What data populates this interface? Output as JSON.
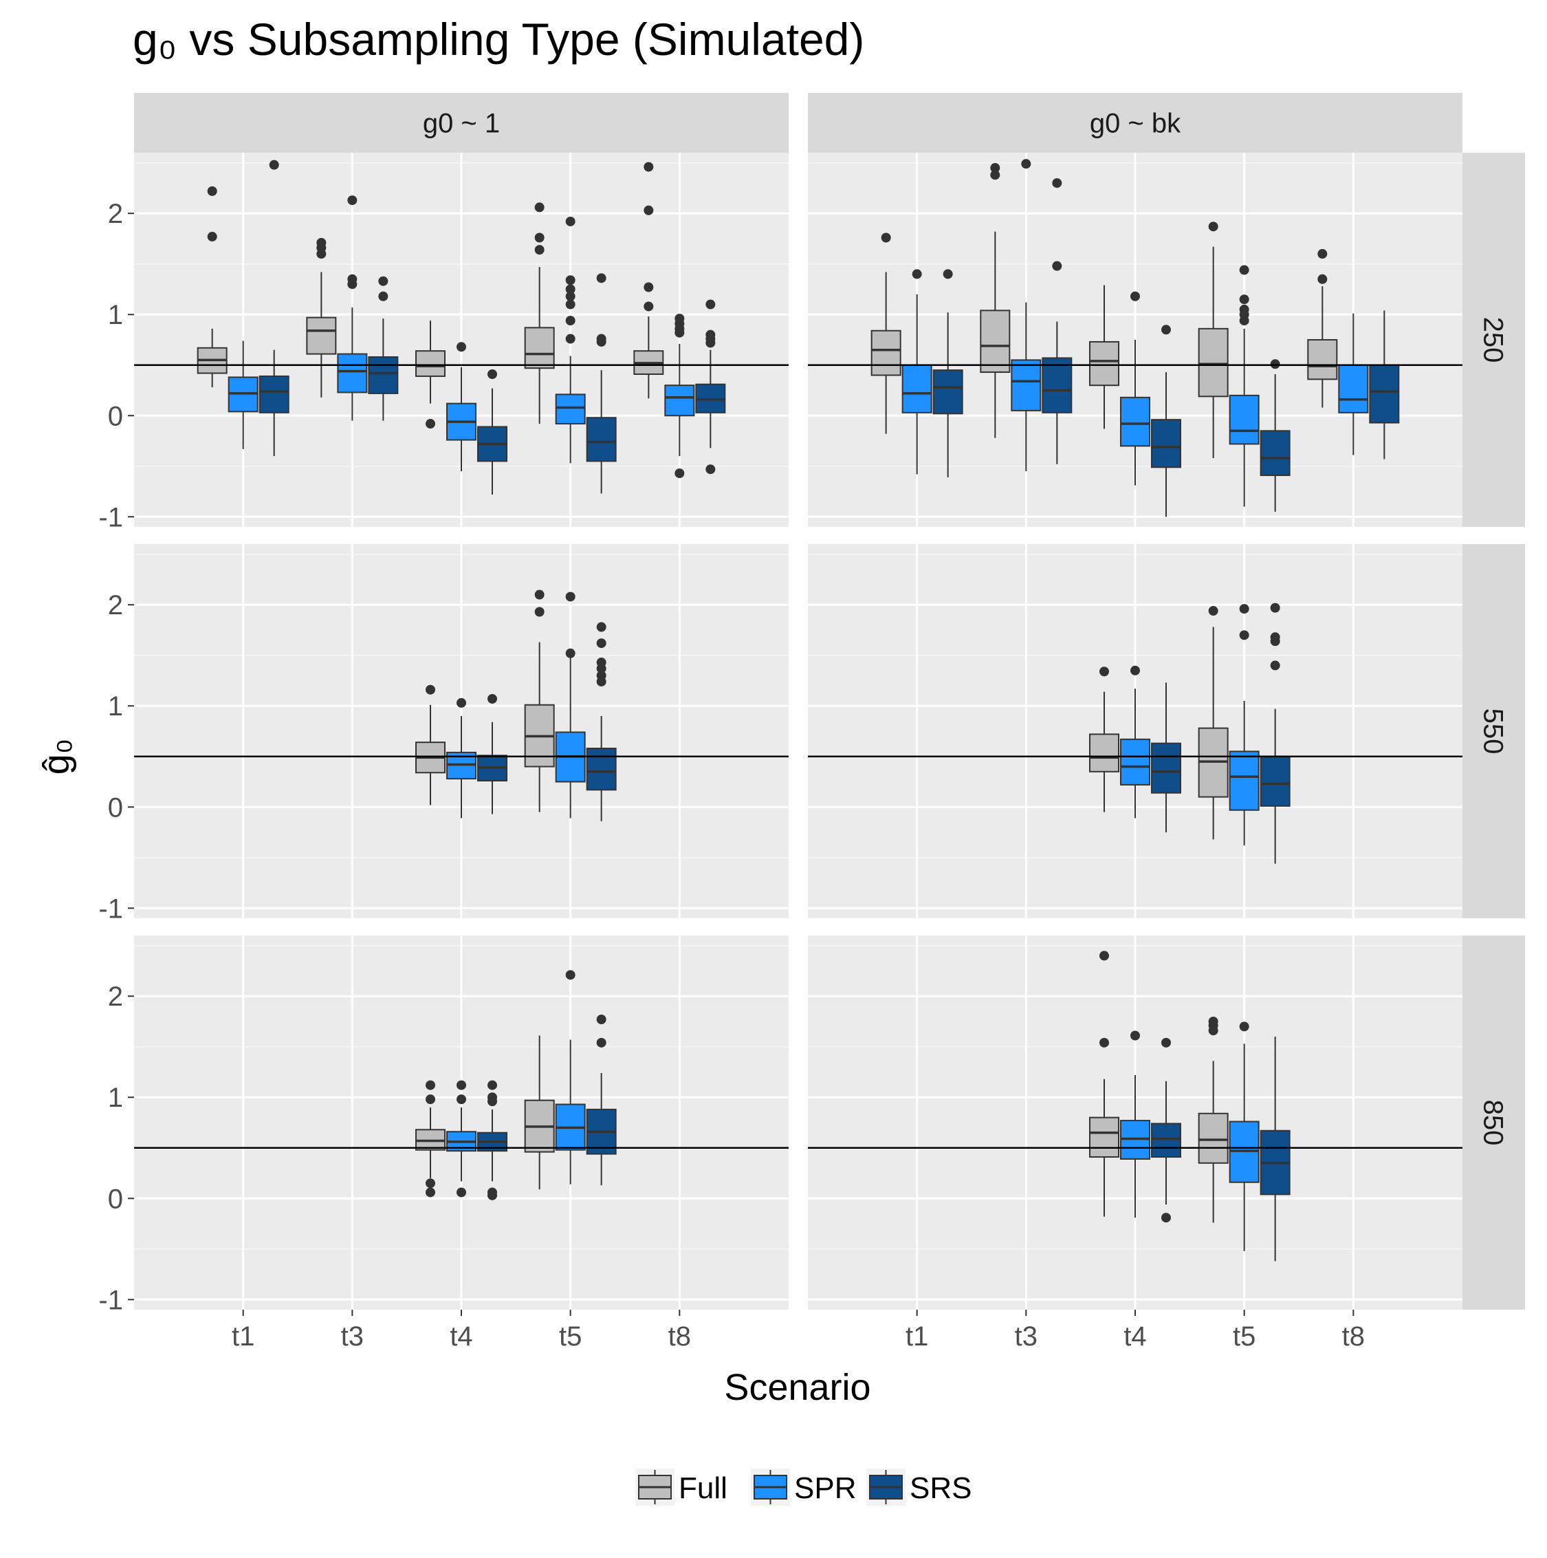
{
  "title": "g₀ vs Subsampling Type (Simulated)",
  "chart_data": {
    "type": "box",
    "title": "g₀ vs Subsampling Type (Simulated)",
    "xlabel": "Scenario",
    "ylabel": "ĝ₀",
    "categories": [
      "t1",
      "t3",
      "t4",
      "t5",
      "t8"
    ],
    "ylim": [
      -1.1,
      2.6
    ],
    "yticks": [
      -1,
      0,
      1,
      2
    ],
    "reference_line": 0.5,
    "grid": true,
    "legend": {
      "position": "bottom",
      "entries": [
        "Full",
        "SPR",
        "SRS"
      ]
    },
    "colors": {
      "Full": "#bebebe",
      "SPR": "#1e90ff",
      "SRS": "#104e8b"
    },
    "facet_cols": [
      "g0 ~ 1",
      "g0 ~ bk"
    ],
    "facet_rows": [
      "250",
      "550",
      "850"
    ],
    "panels": [
      {
        "row": "250",
        "col": "g0 ~ 1",
        "boxes": [
          {
            "x": "t1",
            "series": "Full",
            "lower_whisker": 0.28,
            "q1": 0.42,
            "median": 0.55,
            "q3": 0.67,
            "upper_whisker": 0.86,
            "outliers": [
              2.22,
              1.77
            ]
          },
          {
            "x": "t1",
            "series": "SPR",
            "lower_whisker": -0.33,
            "q1": 0.04,
            "median": 0.22,
            "q3": 0.38,
            "upper_whisker": 0.74,
            "outliers": []
          },
          {
            "x": "t1",
            "series": "SRS",
            "lower_whisker": -0.4,
            "q1": 0.03,
            "median": 0.24,
            "q3": 0.39,
            "upper_whisker": 0.65,
            "outliers": [
              2.48
            ]
          },
          {
            "x": "t3",
            "series": "Full",
            "lower_whisker": 0.18,
            "q1": 0.61,
            "median": 0.84,
            "q3": 0.97,
            "upper_whisker": 1.42,
            "outliers": [
              1.71,
              1.66,
              1.6
            ]
          },
          {
            "x": "t3",
            "series": "SPR",
            "lower_whisker": -0.05,
            "q1": 0.23,
            "median": 0.44,
            "q3": 0.61,
            "upper_whisker": 1.07,
            "outliers": [
              2.13,
              1.35,
              1.3
            ]
          },
          {
            "x": "t3",
            "series": "SRS",
            "lower_whisker": -0.05,
            "q1": 0.22,
            "median": 0.42,
            "q3": 0.58,
            "upper_whisker": 0.96,
            "outliers": [
              1.33,
              1.18
            ]
          },
          {
            "x": "t4",
            "series": "Full",
            "lower_whisker": 0.12,
            "q1": 0.39,
            "median": 0.49,
            "q3": 0.64,
            "upper_whisker": 0.94,
            "outliers": [
              -0.08
            ]
          },
          {
            "x": "t4",
            "series": "SPR",
            "lower_whisker": -0.55,
            "q1": -0.24,
            "median": -0.06,
            "q3": 0.12,
            "upper_whisker": 0.48,
            "outliers": [
              0.68
            ]
          },
          {
            "x": "t4",
            "series": "SRS",
            "lower_whisker": -0.78,
            "q1": -0.45,
            "median": -0.28,
            "q3": -0.11,
            "upper_whisker": 0.27,
            "outliers": [
              0.41
            ]
          },
          {
            "x": "t5",
            "series": "Full",
            "lower_whisker": -0.08,
            "q1": 0.47,
            "median": 0.61,
            "q3": 0.87,
            "upper_whisker": 1.47,
            "outliers": [
              2.06,
              1.76,
              1.64
            ]
          },
          {
            "x": "t5",
            "series": "SPR",
            "lower_whisker": -0.47,
            "q1": -0.08,
            "median": 0.08,
            "q3": 0.21,
            "upper_whisker": 0.59,
            "outliers": [
              1.92,
              1.34,
              1.25,
              1.18,
              1.1,
              0.94,
              0.76
            ]
          },
          {
            "x": "t5",
            "series": "SRS",
            "lower_whisker": -0.77,
            "q1": -0.45,
            "median": -0.26,
            "q3": -0.02,
            "upper_whisker": 0.45,
            "outliers": [
              1.36,
              0.76,
              0.73
            ]
          },
          {
            "x": "t8",
            "series": "Full",
            "lower_whisker": 0.17,
            "q1": 0.41,
            "median": 0.52,
            "q3": 0.64,
            "upper_whisker": 0.98,
            "outliers": [
              2.46,
              2.03,
              1.27,
              1.08
            ]
          },
          {
            "x": "t8",
            "series": "SPR",
            "lower_whisker": -0.4,
            "q1": 0.0,
            "median": 0.18,
            "q3": 0.3,
            "upper_whisker": 0.71,
            "outliers": [
              0.96,
              0.91,
              0.86,
              0.82,
              -0.57
            ]
          },
          {
            "x": "t8",
            "series": "SRS",
            "lower_whisker": -0.32,
            "q1": 0.03,
            "median": 0.16,
            "q3": 0.31,
            "upper_whisker": 0.65,
            "outliers": [
              1.1,
              0.8,
              0.76,
              0.72,
              -0.53
            ]
          }
        ]
      },
      {
        "row": "250",
        "col": "g0 ~ bk",
        "boxes": [
          {
            "x": "t1",
            "series": "Full",
            "lower_whisker": -0.18,
            "q1": 0.4,
            "median": 0.65,
            "q3": 0.84,
            "upper_whisker": 1.42,
            "outliers": [
              1.76
            ]
          },
          {
            "x": "t1",
            "series": "SPR",
            "lower_whisker": -0.58,
            "q1": 0.03,
            "median": 0.22,
            "q3": 0.5,
            "upper_whisker": 1.2,
            "outliers": [
              1.4
            ]
          },
          {
            "x": "t1",
            "series": "SRS",
            "lower_whisker": -0.61,
            "q1": 0.02,
            "median": 0.28,
            "q3": 0.45,
            "upper_whisker": 1.02,
            "outliers": [
              1.4
            ]
          },
          {
            "x": "t3",
            "series": "Full",
            "lower_whisker": -0.22,
            "q1": 0.43,
            "median": 0.69,
            "q3": 1.04,
            "upper_whisker": 1.82,
            "outliers": [
              2.45,
              2.38
            ]
          },
          {
            "x": "t3",
            "series": "SPR",
            "lower_whisker": -0.55,
            "q1": 0.05,
            "median": 0.34,
            "q3": 0.55,
            "upper_whisker": 1.12,
            "outliers": [
              2.49
            ]
          },
          {
            "x": "t3",
            "series": "SRS",
            "lower_whisker": -0.48,
            "q1": 0.03,
            "median": 0.25,
            "q3": 0.57,
            "upper_whisker": 0.93,
            "outliers": [
              2.3,
              1.48
            ]
          },
          {
            "x": "t4",
            "series": "Full",
            "lower_whisker": -0.13,
            "q1": 0.3,
            "median": 0.54,
            "q3": 0.73,
            "upper_whisker": 1.29,
            "outliers": []
          },
          {
            "x": "t4",
            "series": "SPR",
            "lower_whisker": -0.69,
            "q1": -0.3,
            "median": -0.08,
            "q3": 0.18,
            "upper_whisker": 0.75,
            "outliers": [
              1.18
            ]
          },
          {
            "x": "t4",
            "series": "SRS",
            "lower_whisker": -1.0,
            "q1": -0.51,
            "median": -0.31,
            "q3": -0.04,
            "upper_whisker": 0.43,
            "outliers": [
              0.85
            ]
          },
          {
            "x": "t5",
            "series": "Full",
            "lower_whisker": -0.42,
            "q1": 0.19,
            "median": 0.51,
            "q3": 0.86,
            "upper_whisker": 1.67,
            "outliers": [
              1.87
            ]
          },
          {
            "x": "t5",
            "series": "SPR",
            "lower_whisker": -0.9,
            "q1": -0.28,
            "median": -0.15,
            "q3": 0.2,
            "upper_whisker": 0.86,
            "outliers": [
              1.44,
              1.15,
              1.05,
              1.0,
              0.94
            ]
          },
          {
            "x": "t5",
            "series": "SRS",
            "lower_whisker": -0.95,
            "q1": -0.59,
            "median": -0.42,
            "q3": -0.15,
            "upper_whisker": 0.41,
            "outliers": [
              0.51
            ]
          },
          {
            "x": "t8",
            "series": "Full",
            "lower_whisker": 0.08,
            "q1": 0.36,
            "median": 0.49,
            "q3": 0.75,
            "upper_whisker": 1.28,
            "outliers": [
              1.6,
              1.35
            ]
          },
          {
            "x": "t8",
            "series": "SPR",
            "lower_whisker": -0.39,
            "q1": 0.03,
            "median": 0.16,
            "q3": 0.5,
            "upper_whisker": 1.01,
            "outliers": []
          },
          {
            "x": "t8",
            "series": "SRS",
            "lower_whisker": -0.43,
            "q1": -0.07,
            "median": 0.24,
            "q3": 0.5,
            "upper_whisker": 1.04,
            "outliers": []
          }
        ]
      },
      {
        "row": "550",
        "col": "g0 ~ 1",
        "boxes": [
          {
            "x": "t4",
            "series": "Full",
            "lower_whisker": 0.02,
            "q1": 0.34,
            "median": 0.49,
            "q3": 0.64,
            "upper_whisker": 1.01,
            "outliers": [
              1.16
            ]
          },
          {
            "x": "t4",
            "series": "SPR",
            "lower_whisker": -0.11,
            "q1": 0.28,
            "median": 0.42,
            "q3": 0.54,
            "upper_whisker": 0.9,
            "outliers": [
              1.03
            ]
          },
          {
            "x": "t4",
            "series": "SRS",
            "lower_whisker": -0.07,
            "q1": 0.26,
            "median": 0.39,
            "q3": 0.51,
            "upper_whisker": 0.84,
            "outliers": [
              1.07
            ]
          },
          {
            "x": "t5",
            "series": "Full",
            "lower_whisker": -0.05,
            "q1": 0.4,
            "median": 0.7,
            "q3": 1.01,
            "upper_whisker": 1.63,
            "outliers": [
              2.1,
              1.93
            ]
          },
          {
            "x": "t5",
            "series": "SPR",
            "lower_whisker": -0.11,
            "q1": 0.25,
            "median": 0.5,
            "q3": 0.74,
            "upper_whisker": 1.49,
            "outliers": [
              2.08,
              1.52
            ]
          },
          {
            "x": "t5",
            "series": "SRS",
            "lower_whisker": -0.14,
            "q1": 0.17,
            "median": 0.35,
            "q3": 0.58,
            "upper_whisker": 0.9,
            "outliers": [
              1.78,
              1.62,
              1.43,
              1.37,
              1.3,
              1.24
            ]
          }
        ]
      },
      {
        "row": "550",
        "col": "g0 ~ bk",
        "boxes": [
          {
            "x": "t4",
            "series": "Full",
            "lower_whisker": -0.05,
            "q1": 0.35,
            "median": 0.49,
            "q3": 0.72,
            "upper_whisker": 1.14,
            "outliers": [
              1.34
            ]
          },
          {
            "x": "t4",
            "series": "SPR",
            "lower_whisker": -0.11,
            "q1": 0.22,
            "median": 0.4,
            "q3": 0.67,
            "upper_whisker": 1.17,
            "outliers": [
              1.35
            ]
          },
          {
            "x": "t4",
            "series": "SRS",
            "lower_whisker": -0.25,
            "q1": 0.14,
            "median": 0.35,
            "q3": 0.63,
            "upper_whisker": 1.23,
            "outliers": []
          },
          {
            "x": "t5",
            "series": "Full",
            "lower_whisker": -0.32,
            "q1": 0.1,
            "median": 0.45,
            "q3": 0.78,
            "upper_whisker": 1.78,
            "outliers": [
              1.94
            ]
          },
          {
            "x": "t5",
            "series": "SPR",
            "lower_whisker": -0.38,
            "q1": -0.03,
            "median": 0.3,
            "q3": 0.55,
            "upper_whisker": 1.05,
            "outliers": [
              1.96,
              1.7
            ]
          },
          {
            "x": "t5",
            "series": "SRS",
            "lower_whisker": -0.56,
            "q1": 0.01,
            "median": 0.23,
            "q3": 0.5,
            "upper_whisker": 0.97,
            "outliers": [
              1.97,
              1.68,
              1.64,
              1.4
            ]
          }
        ]
      },
      {
        "row": "850",
        "col": "g0 ~ 1",
        "boxes": [
          {
            "x": "t4",
            "series": "Full",
            "lower_whisker": 0.2,
            "q1": 0.48,
            "median": 0.57,
            "q3": 0.68,
            "upper_whisker": 0.9,
            "outliers": [
              1.12,
              0.98,
              0.15,
              0.06
            ]
          },
          {
            "x": "t4",
            "series": "SPR",
            "lower_whisker": 0.17,
            "q1": 0.47,
            "median": 0.56,
            "q3": 0.66,
            "upper_whisker": 0.9,
            "outliers": [
              1.12,
              0.98,
              0.06
            ]
          },
          {
            "x": "t4",
            "series": "SRS",
            "lower_whisker": 0.17,
            "q1": 0.47,
            "median": 0.56,
            "q3": 0.65,
            "upper_whisker": 0.88,
            "outliers": [
              1.12,
              1.0,
              0.96,
              0.06,
              0.03
            ]
          },
          {
            "x": "t5",
            "series": "Full",
            "lower_whisker": 0.09,
            "q1": 0.46,
            "median": 0.71,
            "q3": 0.97,
            "upper_whisker": 1.61,
            "outliers": []
          },
          {
            "x": "t5",
            "series": "SPR",
            "lower_whisker": 0.14,
            "q1": 0.48,
            "median": 0.7,
            "q3": 0.93,
            "upper_whisker": 1.57,
            "outliers": [
              2.21
            ]
          },
          {
            "x": "t5",
            "series": "SRS",
            "lower_whisker": 0.13,
            "q1": 0.44,
            "median": 0.66,
            "q3": 0.88,
            "upper_whisker": 1.24,
            "outliers": [
              1.77,
              1.54
            ]
          }
        ]
      },
      {
        "row": "850",
        "col": "g0 ~ bk",
        "boxes": [
          {
            "x": "t4",
            "series": "Full",
            "lower_whisker": -0.18,
            "q1": 0.41,
            "median": 0.65,
            "q3": 0.8,
            "upper_whisker": 1.18,
            "outliers": [
              2.4,
              1.54
            ]
          },
          {
            "x": "t4",
            "series": "SPR",
            "lower_whisker": -0.19,
            "q1": 0.39,
            "median": 0.59,
            "q3": 0.77,
            "upper_whisker": 1.22,
            "outliers": [
              1.61
            ]
          },
          {
            "x": "t4",
            "series": "SRS",
            "lower_whisker": -0.06,
            "q1": 0.41,
            "median": 0.59,
            "q3": 0.74,
            "upper_whisker": 1.16,
            "outliers": [
              1.54,
              -0.19
            ]
          },
          {
            "x": "t5",
            "series": "Full",
            "lower_whisker": -0.24,
            "q1": 0.35,
            "median": 0.58,
            "q3": 0.84,
            "upper_whisker": 1.36,
            "outliers": [
              1.75,
              1.71,
              1.66
            ]
          },
          {
            "x": "t5",
            "series": "SPR",
            "lower_whisker": -0.52,
            "q1": 0.16,
            "median": 0.47,
            "q3": 0.76,
            "upper_whisker": 1.53,
            "outliers": [
              1.7
            ]
          },
          {
            "x": "t5",
            "series": "SRS",
            "lower_whisker": -0.62,
            "q1": 0.04,
            "median": 0.35,
            "q3": 0.67,
            "upper_whisker": 1.6,
            "outliers": []
          }
        ]
      }
    ]
  }
}
